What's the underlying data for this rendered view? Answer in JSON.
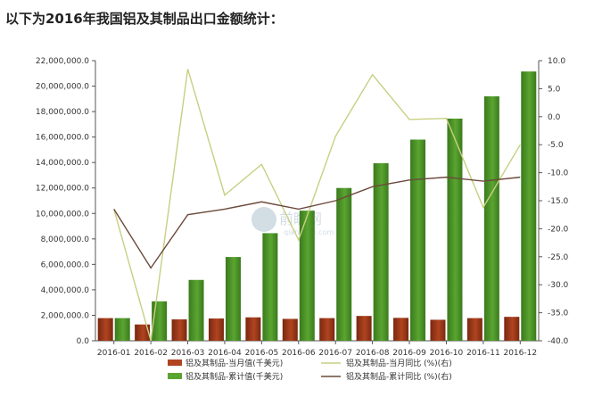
{
  "heading": "以下为2016年我国铝及其制品出口金额统计：",
  "watermark": {
    "cn": "前瞻网",
    "en": "qianzhan.com"
  },
  "colors": {
    "monthly_bar": "#b04420",
    "cumulative_bar": "#5aa531",
    "monthly_yoy_line": "#c8cf82",
    "cumulative_yoy_line": "#6b4a3c"
  },
  "chart_data": {
    "type": "bar",
    "categories": [
      "2016-01",
      "2016-02",
      "2016-03",
      "2016-04",
      "2016-05",
      "2016-06",
      "2016-07",
      "2016-08",
      "2016-09",
      "2016-10",
      "2016-11",
      "2016-12"
    ],
    "y_left": {
      "ylim": [
        0,
        22000000
      ],
      "ticks": [
        "0.0",
        "2,000,000.0",
        "4,000,000.0",
        "6,000,000.0",
        "8,000,000.0",
        "10,000,000.0",
        "12,000,000.0",
        "14,000,000.0",
        "16,000,000.0",
        "18,000,000.0",
        "20,000,000.0",
        "22,000,000.0"
      ]
    },
    "y_right": {
      "ylim": [
        -40,
        10
      ],
      "ticks": [
        "-40.0",
        "-35.0",
        "-30.0",
        "-25.0",
        "-20.0",
        "-15.0",
        "-10.0",
        "-5.0",
        "0.0",
        "5.0",
        "10.0"
      ]
    },
    "series": [
      {
        "name": "铝及其制品-当月值(千美元)",
        "kind": "bar",
        "axis": "left",
        "values": [
          1780000,
          1280000,
          1680000,
          1750000,
          1840000,
          1720000,
          1780000,
          1950000,
          1800000,
          1650000,
          1780000,
          1880000
        ]
      },
      {
        "name": "铝及其制品-累计值(千美元)",
        "kind": "bar",
        "axis": "left",
        "values": [
          1780000,
          3100000,
          4780000,
          6580000,
          8450000,
          10220000,
          12000000,
          13950000,
          15800000,
          17450000,
          19200000,
          21150000
        ]
      },
      {
        "name": "铝及其制品-当月同比 (%)(右)",
        "kind": "line",
        "axis": "right",
        "values": [
          -16.5,
          -40.0,
          8.5,
          -14.0,
          -8.5,
          -22.0,
          -3.5,
          7.5,
          -0.5,
          -0.3,
          -16.2,
          -5.0
        ]
      },
      {
        "name": "铝及其制品-累计同比 (%)(右)",
        "kind": "line",
        "axis": "right",
        "values": [
          -16.5,
          -27.0,
          -17.5,
          -16.5,
          -15.2,
          -16.5,
          -15.0,
          -12.5,
          -11.3,
          -10.8,
          -11.5,
          -10.8
        ]
      }
    ],
    "legend_position": "bottom",
    "grid": false
  }
}
